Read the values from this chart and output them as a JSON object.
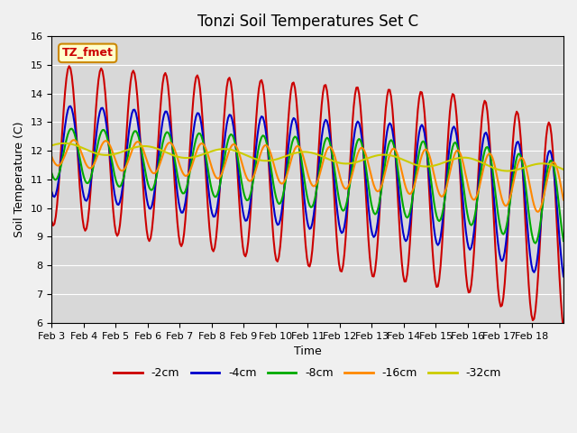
{
  "title": "Tonzi Soil Temperatures Set C",
  "xlabel": "Time",
  "ylabel": "Soil Temperature (C)",
  "ylim": [
    6.0,
    16.0
  ],
  "yticks": [
    6.0,
    7.0,
    8.0,
    9.0,
    10.0,
    11.0,
    12.0,
    13.0,
    14.0,
    15.0,
    16.0
  ],
  "xtick_labels": [
    "Feb 3",
    "Feb 4",
    "Feb 5",
    "Feb 6",
    "Feb 7",
    "Feb 8",
    "Feb 9",
    "Feb 10",
    "Feb 11",
    "Feb 12",
    "Feb 13",
    "Feb 14",
    "Feb 15",
    "Feb 16",
    "Feb 17",
    "Feb 18"
  ],
  "series": [
    {
      "label": "-2cm",
      "color": "#cc0000",
      "lw": 1.5
    },
    {
      "label": "-4cm",
      "color": "#0000cc",
      "lw": 1.5
    },
    {
      "label": "-8cm",
      "color": "#00aa00",
      "lw": 1.5
    },
    {
      "label": "-16cm",
      "color": "#ff8800",
      "lw": 1.5
    },
    {
      "label": "-32cm",
      "color": "#cccc00",
      "lw": 1.5
    }
  ],
  "annotation_text": "TZ_fmet",
  "annotation_bg": "#ffffcc",
  "annotation_border": "#cc8800",
  "fig_bg_color": "#f0f0f0",
  "plot_bg_color": "#d8d8d8"
}
